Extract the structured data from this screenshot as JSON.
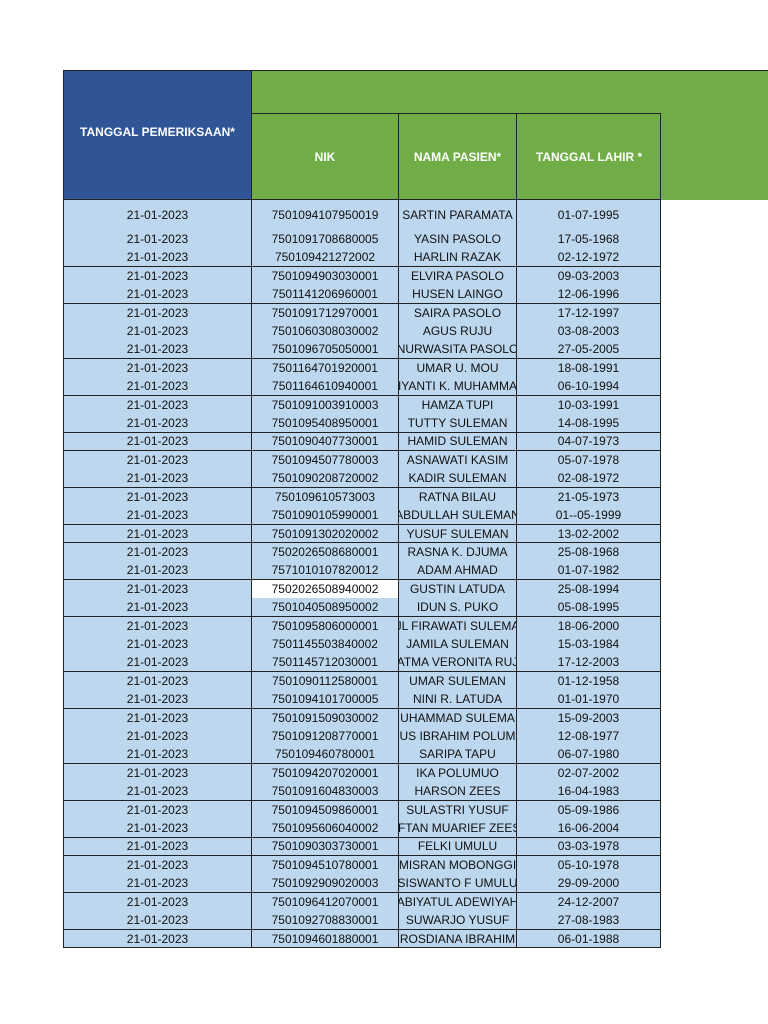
{
  "headers": [
    "TANGGAL PEMERIKSAAN*",
    "NIK",
    "NAMA PASIEN*",
    "TANGGAL LAHIR *"
  ],
  "rows": [
    [
      "21-01-2023",
      "7501094107950019",
      "SARTIN PARAMATA",
      "01-07-1995"
    ],
    [
      "21-01-2023",
      "7501091708680005",
      "YASIN PASOLO",
      "17-05-1968"
    ],
    [
      "21-01-2023",
      "750109421272002",
      "HARLIN RAZAK",
      "02-12-1972"
    ],
    [
      "21-01-2023",
      "7501094903030001",
      "ELVIRA PASOLO",
      "09-03-2003"
    ],
    [
      "21-01-2023",
      "7501141206960001",
      "HUSEN LAINGO",
      "12-06-1996"
    ],
    [
      "21-01-2023",
      "7501091712970001",
      "SAIRA PASOLO",
      "17-12-1997"
    ],
    [
      "21-01-2023",
      "7501060308030002",
      "AGUS RUJU",
      "03-08-2003"
    ],
    [
      "21-01-2023",
      "7501096705050001",
      "NURWASITA PASOLO",
      "27-05-2005"
    ],
    [
      "21-01-2023",
      "7501164701920001",
      "UMAR U. MOU",
      "18-08-1991"
    ],
    [
      "21-01-2023",
      "7501164610940001",
      "IYANTI K. MUHAMMA",
      "06-10-1994"
    ],
    [
      "21-01-2023",
      "7501091003910003",
      "HAMZA TUPI",
      "10-03-1991"
    ],
    [
      "21-01-2023",
      "7501095408950001",
      "TUTTY SULEMAN",
      "14-08-1995"
    ],
    [
      "21-01-2023",
      "7501090407730001",
      "HAMID SULEMAN",
      "04-07-1973"
    ],
    [
      "21-01-2023",
      "7501094507780003",
      "ASNAWATI KASIM",
      "05-07-1978"
    ],
    [
      "21-01-2023",
      "7501090208720002",
      "KADIR SULEMAN",
      "02-08-1972"
    ],
    [
      "21-01-2023",
      "750109610573003",
      "RATNA BILAU",
      "21-05-1973"
    ],
    [
      "21-01-2023",
      "7501090105990001",
      "ABDULLAH SULEMAN",
      "01--05-1999"
    ],
    [
      "21-01-2023",
      "7501091302020002",
      "YUSUF SULEMAN",
      "13-02-2002"
    ],
    [
      "21-01-2023",
      "7502026508680001",
      "RASNA K. DJUMA",
      "25-08-1968"
    ],
    [
      "21-01-2023",
      "7571010107820012",
      "ADAM AHMAD",
      "01-07-1982"
    ],
    [
      "21-01-2023",
      "7502026508940002",
      "GUSTIN LATUDA",
      "25-08-1994"
    ],
    [
      "21-01-2023",
      "7501040508950002",
      "IDUN S. PUKO",
      "05-08-1995"
    ],
    [
      "21-01-2023",
      "7501095806000001",
      "JL FIRAWATI SULEMA",
      "18-06-2000"
    ],
    [
      "21-01-2023",
      "7501145503840002",
      "JAMILA SULEMAN",
      "15-03-1984"
    ],
    [
      "21-01-2023",
      "7501145712030001",
      "ATMA VERONITA RUJ",
      "17-12-2003"
    ],
    [
      "21-01-2023",
      "7501090112580001",
      "UMAR SULEMAN",
      "01-12-1958"
    ],
    [
      "21-01-2023",
      "7501094101700005",
      "NINI R. LATUDA",
      "01-01-1970"
    ],
    [
      "21-01-2023",
      "7501091509030002",
      "UHAMMAD SULEMA",
      "15-09-2003"
    ],
    [
      "21-01-2023",
      "7501091208770001",
      "US IBRAHIM POLUM",
      "12-08-1977"
    ],
    [
      "21-01-2023",
      "750109460780001",
      "SARIPA TAPU",
      "06-07-1980"
    ],
    [
      "21-01-2023",
      "7501094207020001",
      "IKA POLUMUO",
      "02-07-2002"
    ],
    [
      "21-01-2023",
      "7501091604830003",
      "HARSON ZEES",
      "16-04-1983"
    ],
    [
      "21-01-2023",
      "7501094509860001",
      "SULASTRI YUSUF",
      "05-09-1986"
    ],
    [
      "21-01-2023",
      "7501095606040002",
      "IFTAN MUARIEF ZEES",
      "16-06-2004"
    ],
    [
      "21-01-2023",
      "7501090303730001",
      "FELKI UMULU",
      "03-03-1978"
    ],
    [
      "21-01-2023",
      "7501094510780001",
      "MISRAN MOBONGGI",
      "05-10-1978"
    ],
    [
      "21-01-2023",
      "7501092909020003",
      "SISWANTO F UMULU",
      "29-09-2000"
    ],
    [
      "21-01-2023",
      "7501096412070001",
      "ABIYATUL ADEWIYAH",
      "24-12-2007"
    ],
    [
      "21-01-2023",
      "7501092708830001",
      "SUWARJO YUSUF",
      "27-08-1983"
    ],
    [
      "21-01-2023",
      "7501094601880001",
      "ROSDIANA IBRAHIM",
      "06-01-1988"
    ]
  ]
}
